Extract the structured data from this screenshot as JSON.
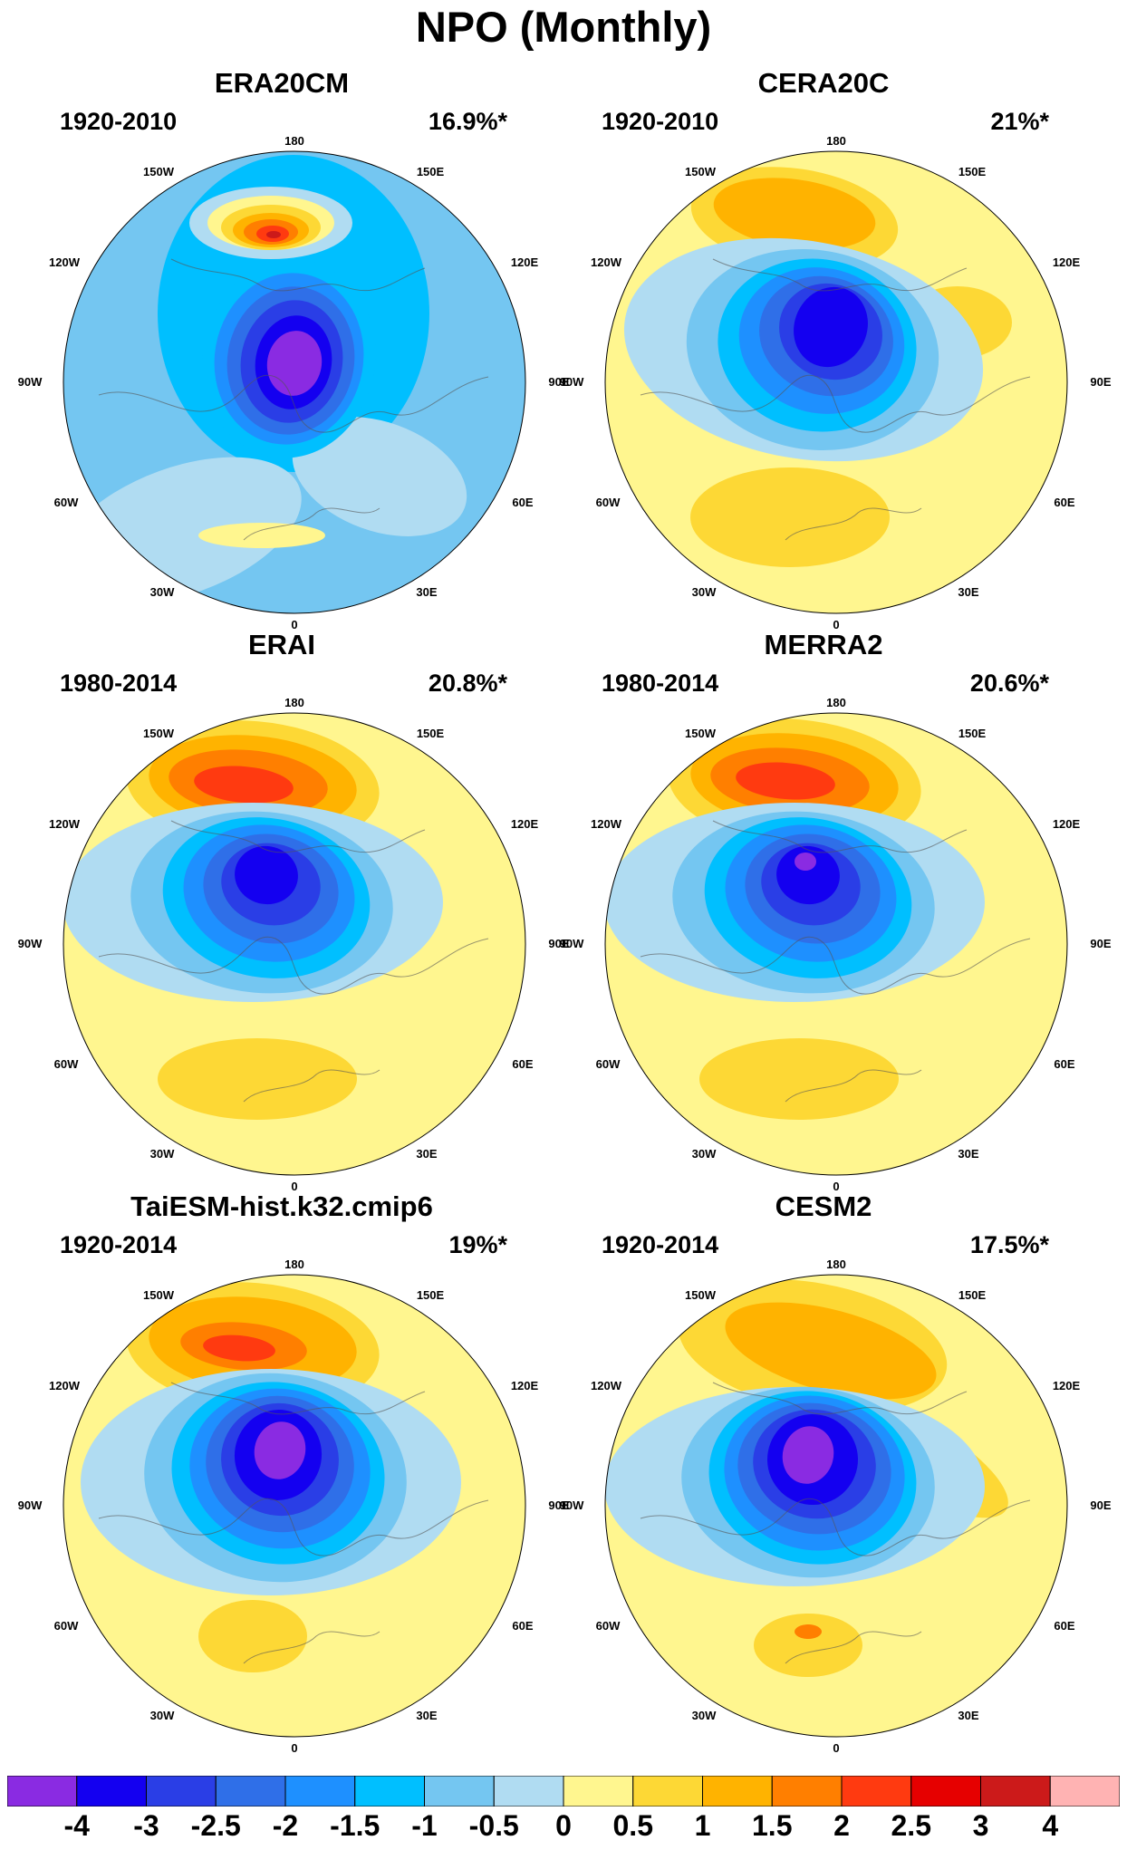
{
  "figure": {
    "title": "NPO (Monthly)",
    "panels": [
      {
        "model": "ERA20CM",
        "period": "1920-2010",
        "variance": "16.9%*",
        "pattern": "era20cm"
      },
      {
        "model": "CERA20C",
        "period": "1920-2010",
        "variance": "21%*",
        "pattern": "cera"
      },
      {
        "model": "ERAI",
        "period": "1980-2014",
        "variance": "20.8%*",
        "pattern": "erai"
      },
      {
        "model": "MERRA2",
        "period": "1980-2014",
        "variance": "20.6%*",
        "pattern": "merra"
      },
      {
        "model": "TaiESM-hist.k32.cmip6",
        "period": "1920-2014",
        "variance": "19%*",
        "pattern": "taiesm"
      },
      {
        "model": "CESM2",
        "period": "1920-2014",
        "variance": "17.5%*",
        "pattern": "cesm"
      }
    ],
    "longitude_labels": [
      "180",
      "150E",
      "120E",
      "90E",
      "60E",
      "30E",
      "0",
      "30W",
      "60W",
      "90W",
      "120W",
      "150W"
    ],
    "colorbar": {
      "tick_labels": [
        "-4",
        "-3",
        "-2.5",
        "-2",
        "-1.5",
        "-1",
        "-0.5",
        "0",
        "0.5",
        "1",
        "1.5",
        "2",
        "2.5",
        "3",
        "4"
      ],
      "colors": [
        "#8a2be2",
        "#1400f0",
        "#2a3ee6",
        "#2f6fe8",
        "#1e90ff",
        "#00bfff",
        "#74c6f1",
        "#b0dcf2",
        "#fff68f",
        "#fdd835",
        "#ffb300",
        "#ff7f00",
        "#ff3a10",
        "#e60000",
        "#cc1a1a",
        "#ffb3b3"
      ]
    }
  }
}
